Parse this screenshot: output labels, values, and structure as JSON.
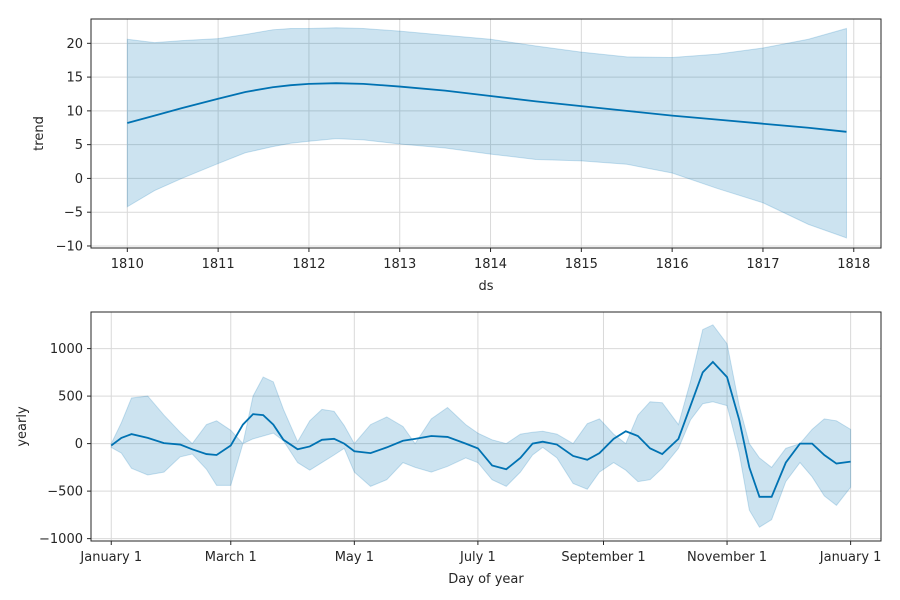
{
  "chart_data": [
    {
      "type": "line",
      "xlabel": "ds",
      "ylabel": "trend",
      "xlim": [
        1809.6,
        1818.3
      ],
      "ylim": [
        -10.3,
        23.6
      ],
      "grid": true,
      "colors": {
        "line": "#0072B2",
        "band": "#0072B2"
      },
      "x_ticks": [
        1810,
        1811,
        1812,
        1813,
        1814,
        1815,
        1816,
        1817,
        1818
      ],
      "x_tick_labels": [
        "1810",
        "1811",
        "1812",
        "1813",
        "1814",
        "1815",
        "1816",
        "1817",
        "1818"
      ],
      "y_ticks": [
        -10,
        -5,
        0,
        5,
        10,
        15,
        20
      ],
      "y_tick_labels": [
        "−10",
        "−5",
        "0",
        "5",
        "10",
        "15",
        "20"
      ],
      "series": [
        {
          "x": [
            1810.0,
            1810.3,
            1810.6,
            1811.0,
            1811.3,
            1811.6,
            1811.8,
            1812.0,
            1812.3,
            1812.6,
            1813.0,
            1813.5,
            1814.0,
            1814.5,
            1815.0,
            1815.5,
            1816.0,
            1816.5,
            1817.0,
            1817.5,
            1817.92
          ],
          "y": [
            8.2,
            9.3,
            10.4,
            11.8,
            12.8,
            13.5,
            13.8,
            14.0,
            14.1,
            14.0,
            13.6,
            13.0,
            12.2,
            11.4,
            10.7,
            10.0,
            9.3,
            8.7,
            8.1,
            7.5,
            6.9
          ],
          "lower": [
            -4.2,
            -1.8,
            0.0,
            2.2,
            3.8,
            4.7,
            5.2,
            5.5,
            5.9,
            5.7,
            5.1,
            4.5,
            3.6,
            2.8,
            2.6,
            2.1,
            0.8,
            -1.5,
            -3.6,
            -6.8,
            -8.8
          ],
          "upper": [
            20.6,
            20.1,
            20.4,
            20.7,
            21.3,
            22.0,
            22.2,
            22.2,
            22.3,
            22.2,
            21.8,
            21.2,
            20.6,
            19.6,
            18.7,
            18.0,
            17.9,
            18.4,
            19.3,
            20.6,
            22.2
          ]
        }
      ]
    },
    {
      "type": "line",
      "xlabel": "Day of year",
      "ylabel": "yearly",
      "xlim": [
        -10,
        380
      ],
      "ylim": [
        -1025,
        1385
      ],
      "grid": true,
      "colors": {
        "line": "#0072B2",
        "band": "#0072B2"
      },
      "x_ticks": [
        0,
        59,
        120,
        181,
        243,
        304,
        365
      ],
      "x_tick_labels": [
        "January 1",
        "March 1",
        "May 1",
        "July 1",
        "September 1",
        "November 1",
        "January 1"
      ],
      "y_ticks": [
        -1000,
        -500,
        0,
        500,
        1000
      ],
      "y_tick_labels": [
        "−1000",
        "−500",
        "0",
        "500",
        "1000"
      ],
      "series": [
        {
          "x": [
            0,
            5,
            10,
            18,
            26,
            34,
            40,
            47,
            52,
            59,
            65,
            70,
            75,
            80,
            85,
            92,
            98,
            104,
            110,
            115,
            120,
            128,
            136,
            144,
            150,
            158,
            166,
            175,
            181,
            188,
            195,
            202,
            208,
            213,
            220,
            228,
            235,
            241,
            248,
            254,
            260,
            266,
            272,
            280,
            286,
            292,
            297,
            304,
            310,
            315,
            320,
            326,
            333,
            340,
            346,
            352,
            358,
            365
          ],
          "y": [
            -20,
            60,
            100,
            60,
            5,
            -10,
            -60,
            -110,
            -120,
            -20,
            200,
            310,
            300,
            200,
            40,
            -60,
            -30,
            40,
            50,
            0,
            -80,
            -100,
            -40,
            30,
            50,
            80,
            70,
            0,
            -50,
            -230,
            -270,
            -150,
            0,
            20,
            -10,
            -130,
            -170,
            -100,
            50,
            130,
            80,
            -50,
            -110,
            50,
            400,
            750,
            860,
            700,
            250,
            -250,
            -560,
            -560,
            -200,
            0,
            0,
            -120,
            -210,
            -190
          ],
          "lower": [
            -40,
            -100,
            -260,
            -330,
            -300,
            -140,
            -110,
            -270,
            -440,
            -440,
            0,
            50,
            80,
            110,
            30,
            -200,
            -280,
            -200,
            -120,
            -50,
            -300,
            -450,
            -380,
            -200,
            -250,
            -300,
            -240,
            -150,
            -200,
            -380,
            -450,
            -300,
            -120,
            -40,
            -150,
            -420,
            -480,
            -300,
            -200,
            -280,
            -400,
            -380,
            -260,
            -50,
            250,
            420,
            440,
            400,
            -100,
            -700,
            -880,
            -800,
            -400,
            -200,
            -350,
            -550,
            -650,
            -460
          ],
          "upper": [
            0,
            220,
            480,
            500,
            300,
            120,
            0,
            200,
            240,
            140,
            0,
            500,
            700,
            650,
            360,
            20,
            240,
            360,
            340,
            190,
            0,
            200,
            280,
            180,
            0,
            260,
            380,
            200,
            110,
            40,
            0,
            100,
            120,
            130,
            100,
            0,
            210,
            260,
            100,
            0,
            300,
            440,
            430,
            200,
            660,
            1200,
            1250,
            1050,
            400,
            0,
            -150,
            -250,
            -50,
            0,
            150,
            260,
            240,
            150
          ]
        }
      ]
    }
  ]
}
